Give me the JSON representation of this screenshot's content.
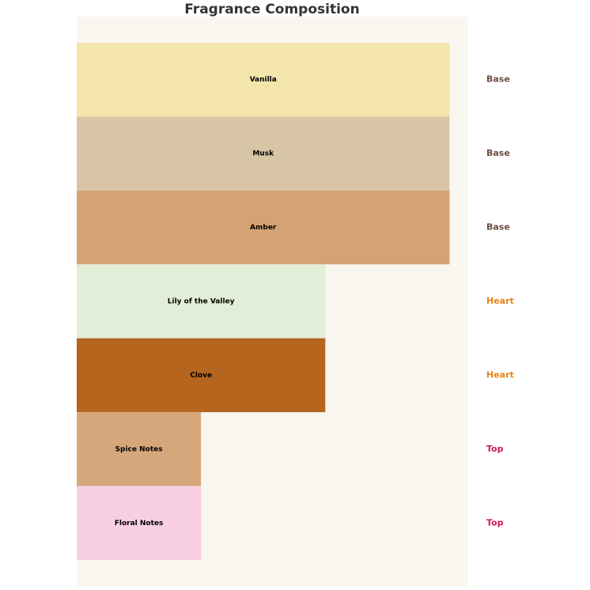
{
  "chart_data": {
    "type": "hbar",
    "title": "Fragrance Composition",
    "categories": [
      "Vanilla",
      "Musk",
      "Amber",
      "Lily of the Valley",
      "Clove",
      "Spice Notes",
      "Floral Notes"
    ],
    "values": [
      3,
      3,
      3,
      2,
      2,
      1,
      1
    ],
    "colors": [
      "#f3e5ab",
      "#d8c5a5",
      "#d4a373",
      "#e2eed8",
      "#b5651d",
      "#d6a77a",
      "#f7cfe0"
    ],
    "tiers": [
      "Base",
      "Base",
      "Base",
      "Heart",
      "Heart",
      "Top",
      "Top"
    ],
    "tier_colors": {
      "Base": "#6d4c41",
      "Heart": "#e8821a",
      "Top": "#d0185c"
    },
    "xlim": [
      0,
      3.15
    ],
    "background": "#f9f6f0"
  }
}
